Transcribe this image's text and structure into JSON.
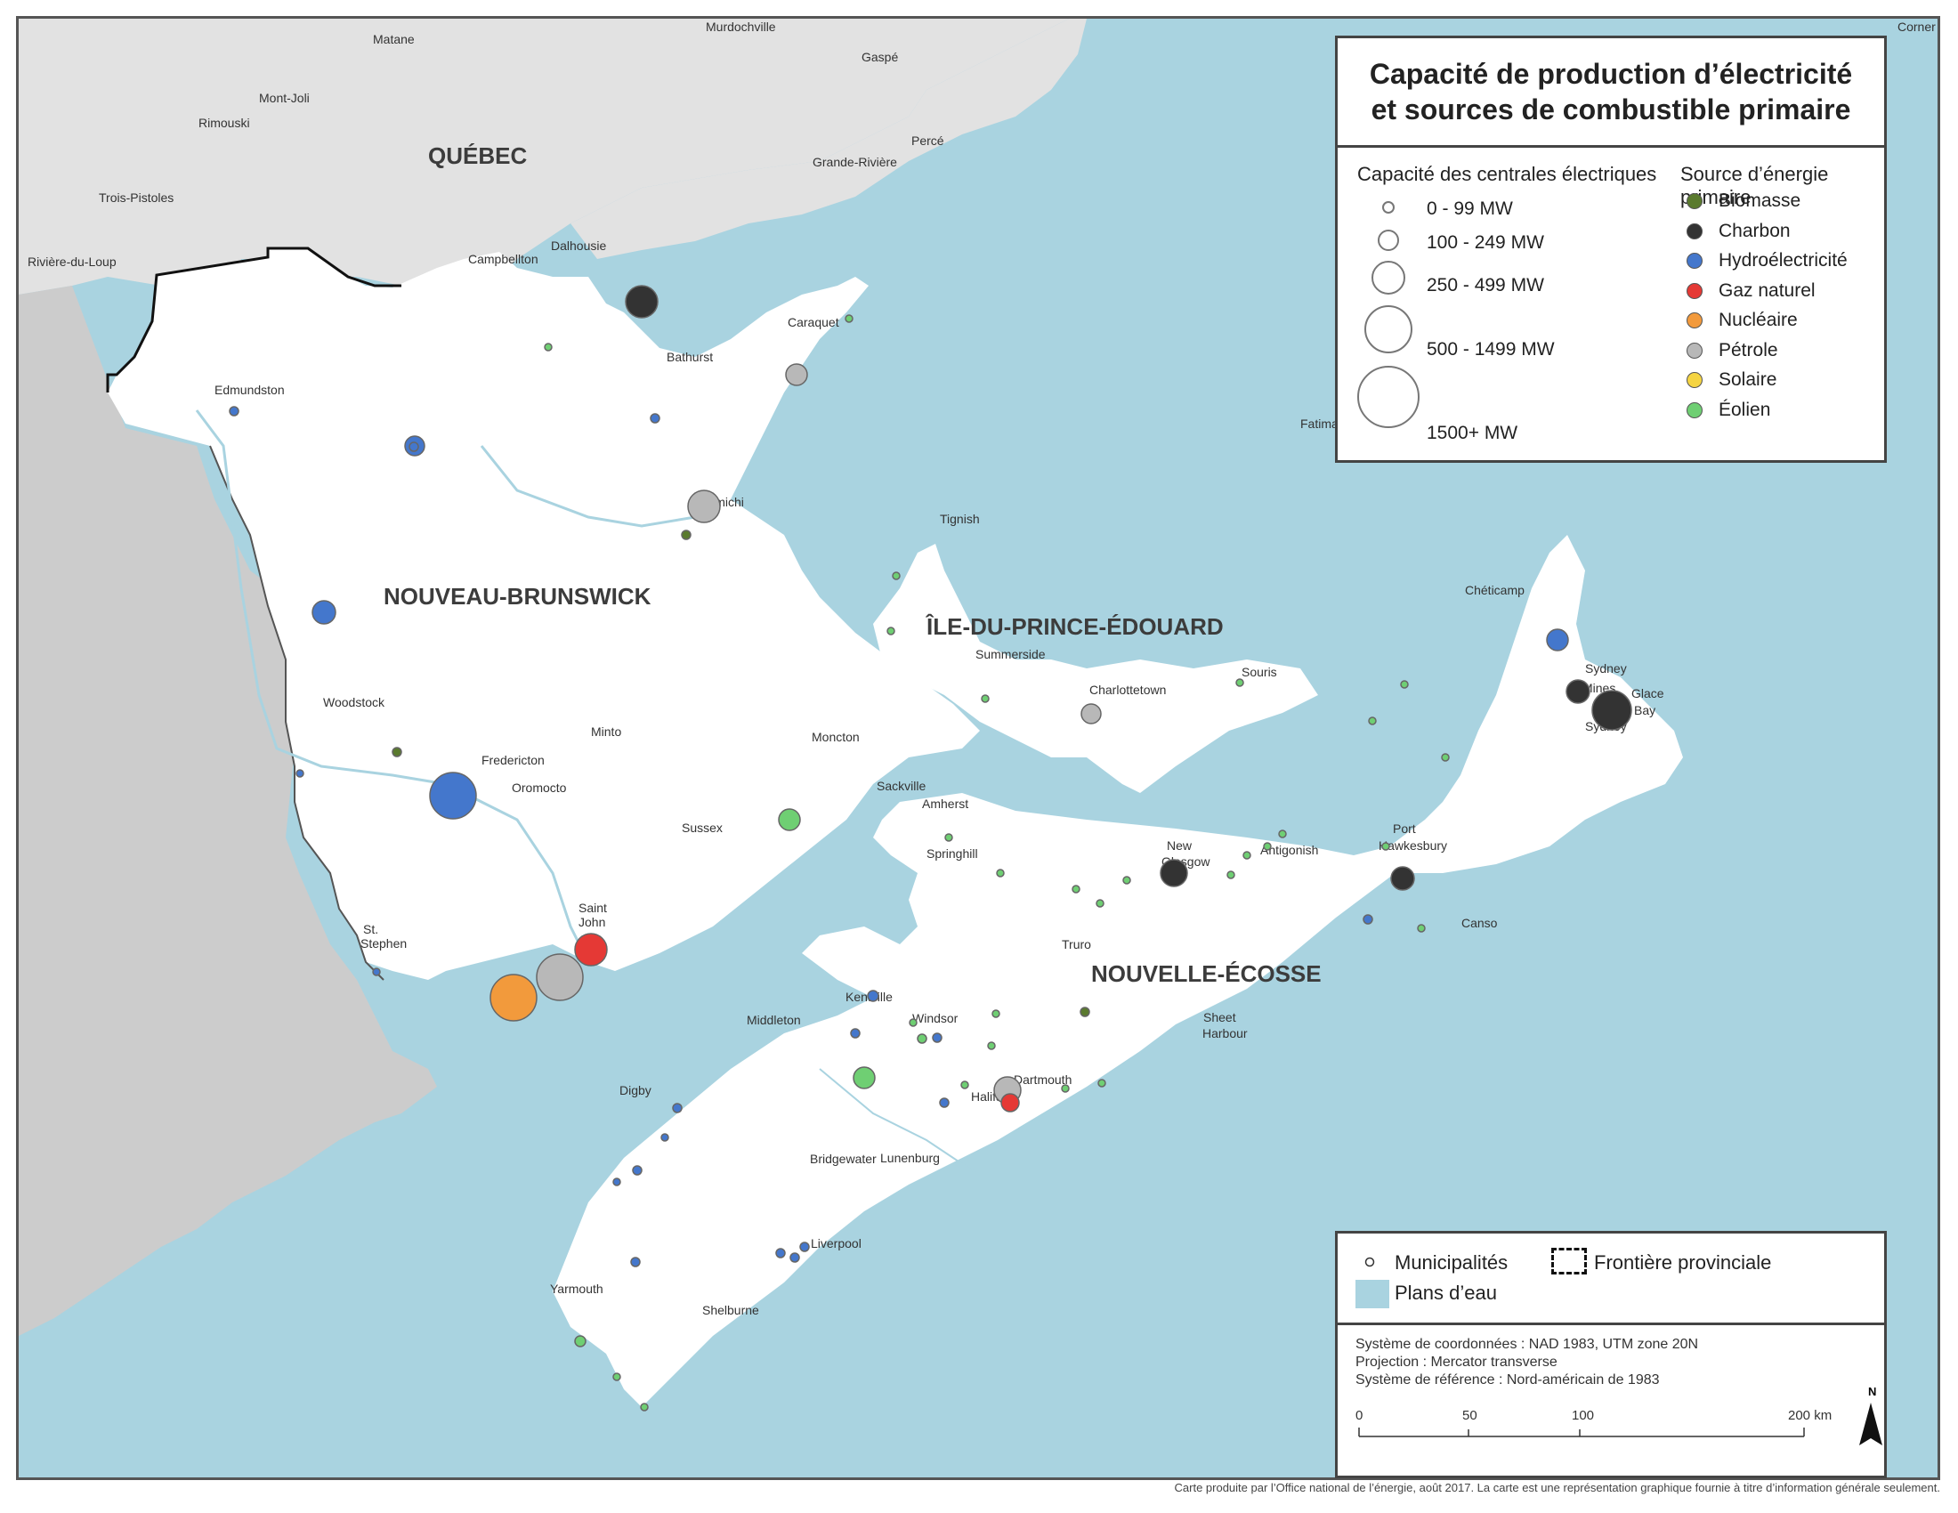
{
  "title": {
    "line1": "Capacité de production d’électricité",
    "line2": "et sources de combustible primaire"
  },
  "legend": {
    "capacity_heading": "Capacité des centrales électriques",
    "capacity_classes": [
      "0 - 99 MW",
      "100 - 249 MW",
      "250 - 499 MW",
      "500 - 1499 MW",
      "1500+ MW"
    ],
    "source_heading": "Source d’énergie primaire",
    "sources": [
      {
        "label": "Biomasse",
        "color": "#5a7a2e"
      },
      {
        "label": "Charbon",
        "color": "#333333"
      },
      {
        "label": "Hydroélectricité",
        "color": "#4477cc"
      },
      {
        "label": "Gaz naturel",
        "color": "#e53935"
      },
      {
        "label": "Nucléaire",
        "color": "#f29a3c"
      },
      {
        "label": "Pétrole",
        "color": "#b8b8b8"
      },
      {
        "label": "Solaire",
        "color": "#f5d442"
      },
      {
        "label": "Éolien",
        "color": "#6fcf73"
      }
    ]
  },
  "reference": {
    "municipalities": "Municipalités",
    "provincial_border": "Frontière provinciale",
    "water": "Plans d’eau",
    "crs": "Système de coordonnées : NAD 1983, UTM zone 20N",
    "projection": "Projection : Mercator transverse",
    "datum": "Système de référence : Nord-américain de 1983",
    "scale_ticks": [
      "0",
      "50",
      "100",
      "200 km"
    ],
    "north": "N"
  },
  "provinces": [
    "QUÉBEC",
    "NOUVEAU-BRUNSWICK",
    "ÎLE-DU-PRINCE-ÉDOUARD",
    "NOUVELLE-ÉCOSSE"
  ],
  "cities": [
    "Matane",
    "Murdochville",
    "Gaspé",
    "Mont-Joli",
    "Rimouski",
    "Percé",
    "Grande-Rivière",
    "Trois-Pistoles",
    "Rivière-du-Loup",
    "Dalhousie",
    "Campbellton",
    "Caraquet",
    "Bathurst",
    "Edmundston",
    "Miramichi",
    "Tignish",
    "Summerside",
    "Charlottetown",
    "Souris",
    "Chéticamp",
    "Sydney",
    "Mines",
    "Glace",
    "Bay",
    "Sydney",
    "Woodstock",
    "Minto",
    "Moncton",
    "Fredericton",
    "Oromocto",
    "Sackville",
    "Amherst",
    "Sussex",
    "Springhill",
    "New",
    "Glasgow",
    "Antigonish",
    "Port",
    "Hawkesbury",
    "Canso",
    "Saint",
    "John",
    "St.",
    "Stephen",
    "Truro",
    "Kentville",
    "Windsor",
    "Middleton",
    "Sheet",
    "Harbour",
    "Digby",
    "Dartmouth",
    "Halifax",
    "Bridgewater",
    "Lunenburg",
    "Liverpool",
    "Yarmouth",
    "Shelburne",
    "Fatima",
    "Corner"
  ],
  "credit": "Carte produite par l’Office national de l’énergie, août 2017. La carte est une représentation graphique fournie à titre d’information générale seulement."
}
